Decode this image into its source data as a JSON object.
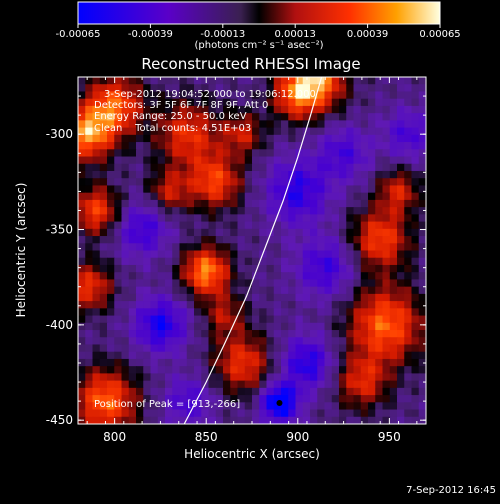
{
  "colorbar": {
    "ticks": [
      "-0.00065",
      "-0.00039",
      "-0.00013",
      "0.00013",
      "0.00039",
      "0.00065"
    ],
    "unit_label": "(photons cm⁻² s⁻¹ asec⁻²)",
    "range": [
      -0.00065,
      0.00065
    ]
  },
  "chart_data": {
    "type": "heatmap",
    "title": "Reconstructed RHESSI Image",
    "xlabel": "Heliocentric X (arcsec)",
    "ylabel": "Heliocentric Y (arcsec)",
    "xlim": [
      780,
      970
    ],
    "ylim": [
      -452,
      -270
    ],
    "x_ticks": [
      800,
      850,
      900,
      950
    ],
    "y_ticks": [
      -300,
      -350,
      -400,
      -450
    ],
    "grid": false,
    "annotations": [
      "3-Sep-2012 19:04:52.000 to 19:06:12.000",
      "Detectors: 3F 5F 6F 7F 8F 9F, Att 0",
      "Energy Range: 25.0 - 50.0 keV",
      "Clean    Total counts: 4.51E+03"
    ],
    "peak_label": "Position of Peak = [913,-266]",
    "peak": [
      913,
      -266
    ],
    "limb_curve": [
      [
        838,
        -452
      ],
      [
        850,
        -430
      ],
      [
        860,
        -410
      ],
      [
        872,
        -385
      ],
      [
        882,
        -360
      ],
      [
        892,
        -335
      ],
      [
        900,
        -312
      ],
      [
        907,
        -290
      ],
      [
        913,
        -270
      ]
    ],
    "dark_spot": [
      890,
      -441
    ],
    "blobs": [
      {
        "x": 785,
        "y": -300,
        "amp": 0.00062,
        "r": 10
      },
      {
        "x": 800,
        "y": -285,
        "amp": 0.00055,
        "r": 11
      },
      {
        "x": 790,
        "y": -340,
        "amp": 0.0005,
        "r": 9
      },
      {
        "x": 786,
        "y": -380,
        "amp": 0.00045,
        "r": 9
      },
      {
        "x": 795,
        "y": -440,
        "amp": 0.00058,
        "r": 12
      },
      {
        "x": 840,
        "y": -300,
        "amp": 0.00045,
        "r": 12
      },
      {
        "x": 855,
        "y": -325,
        "amp": 0.0005,
        "r": 10
      },
      {
        "x": 870,
        "y": -300,
        "amp": 0.00035,
        "r": 8
      },
      {
        "x": 850,
        "y": -372,
        "amp": 0.00065,
        "r": 9
      },
      {
        "x": 830,
        "y": -330,
        "amp": 0.00035,
        "r": 8
      },
      {
        "x": 910,
        "y": -272,
        "amp": 0.00065,
        "r": 11
      },
      {
        "x": 898,
        "y": -280,
        "amp": 0.0004,
        "r": 9
      },
      {
        "x": 945,
        "y": -355,
        "amp": 0.0005,
        "r": 11
      },
      {
        "x": 955,
        "y": -330,
        "amp": 0.00038,
        "r": 8
      },
      {
        "x": 948,
        "y": -400,
        "amp": 0.00058,
        "r": 14
      },
      {
        "x": 935,
        "y": -430,
        "amp": 0.0004,
        "r": 10
      },
      {
        "x": 870,
        "y": -420,
        "amp": 0.00045,
        "r": 11
      },
      {
        "x": 860,
        "y": -395,
        "amp": 0.0003,
        "r": 8
      },
      {
        "x": 825,
        "y": -400,
        "amp": -0.00045,
        "r": 10
      },
      {
        "x": 815,
        "y": -350,
        "amp": -0.00035,
        "r": 10
      },
      {
        "x": 900,
        "y": -330,
        "amp": -0.0004,
        "r": 12
      },
      {
        "x": 925,
        "y": -310,
        "amp": -0.0003,
        "r": 10
      },
      {
        "x": 915,
        "y": -370,
        "amp": -0.00035,
        "r": 11
      },
      {
        "x": 890,
        "y": -441,
        "amp": -0.00065,
        "r": 7
      },
      {
        "x": 905,
        "y": -420,
        "amp": -0.00042,
        "r": 10
      },
      {
        "x": 960,
        "y": -300,
        "amp": -0.0003,
        "r": 9
      },
      {
        "x": 840,
        "y": -440,
        "amp": -0.0003,
        "r": 9
      }
    ]
  },
  "footer": {
    "timestamp": "7-Sep-2012 16:45"
  }
}
